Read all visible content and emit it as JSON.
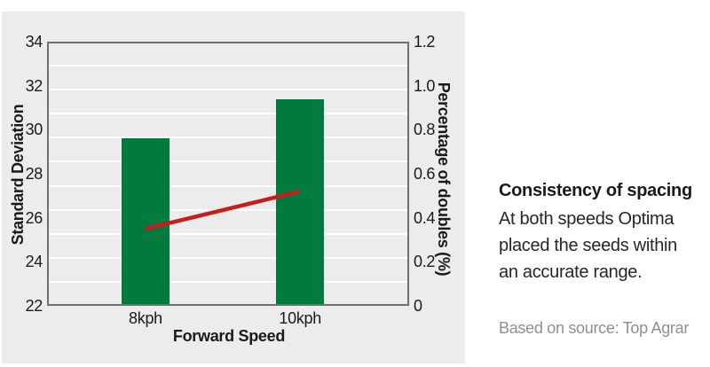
{
  "chart_data": {
    "type": "bar",
    "categories": [
      "8kph",
      "10kph"
    ],
    "series": [
      {
        "name": "Standard Deviation",
        "type": "bar",
        "axis": "left",
        "values": [
          29.6,
          31.4
        ],
        "color": "#007b3e"
      },
      {
        "name": "Percentage of doubles",
        "type": "line",
        "axis": "right",
        "values": [
          0.35,
          0.52
        ],
        "color": "#c81d1d"
      }
    ],
    "left_axis": {
      "label": "Standard Deviation",
      "min": 22,
      "max": 34,
      "ticks": [
        "34",
        "32",
        "30",
        "28",
        "26",
        "24",
        "22"
      ]
    },
    "right_axis": {
      "label": "Percentage of doubles (%)",
      "min": 0,
      "max": 1.2,
      "ticks": [
        "1.2",
        "1.0",
        "0.8",
        "0.6",
        "0.4",
        "0.2",
        "0"
      ]
    },
    "x_axis": {
      "label": "Forward Speed"
    },
    "gridlines": {
      "count": 10,
      "color": "#ffffff"
    },
    "plot_background": "#ececec",
    "frame_color": "#6f6f6f",
    "legend": "none"
  },
  "caption": {
    "title": "Consistency of spacing",
    "body_lines": [
      "At both speeds Optima",
      "placed the seeds within",
      "an accurate range."
    ],
    "source": "Based on source: Top Agrar"
  }
}
